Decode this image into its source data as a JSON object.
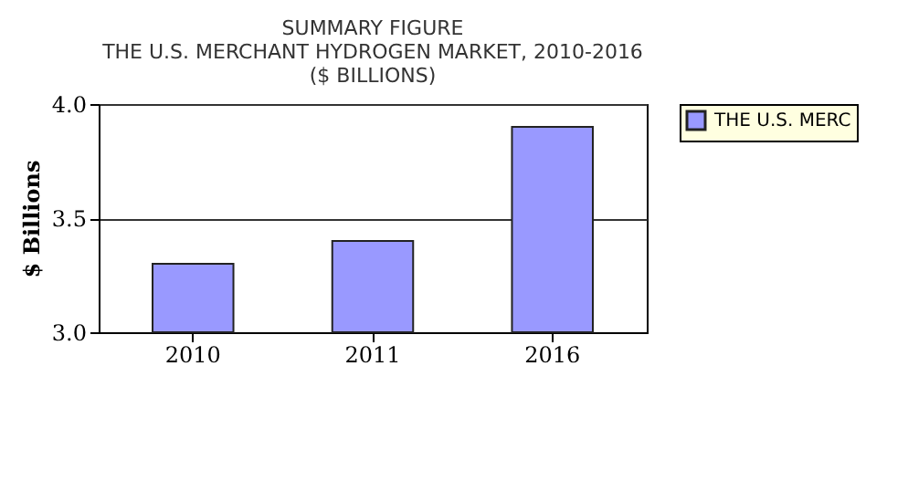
{
  "chart_data": {
    "type": "bar",
    "title": "SUMMARY FIGURE",
    "subtitle": "THE U.S. MERCHANT HYDROGEN MARKET, 2010-2016\n($ BILLIONS)",
    "ylabel": "$ Billions",
    "categories": [
      "2010",
      "2011",
      "2016"
    ],
    "series": [
      {
        "name": "THE U.S. MERC",
        "color": "#9999ff",
        "values": [
          3.3,
          3.4,
          3.9
        ]
      }
    ],
    "ylim": [
      3,
      4
    ],
    "yticks": [
      {
        "value": 3,
        "label": "3.0"
      },
      {
        "value": 3.5,
        "label": "3.5"
      },
      {
        "value": 4,
        "label": "4.0"
      }
    ],
    "grid": "y",
    "legend": "right"
  }
}
